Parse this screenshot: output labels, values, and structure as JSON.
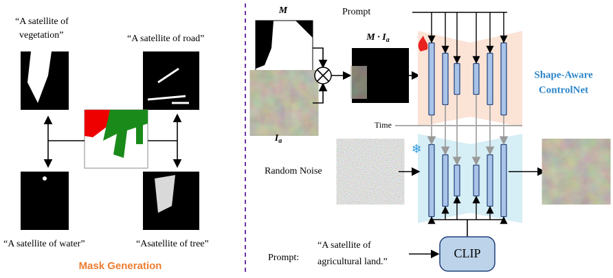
{
  "mask_generation": {
    "vegetation": [
      "“A satellite  of",
      "vegetation”"
    ],
    "road": "“A satellite of road”",
    "water": "“A satellite of water”",
    "tree": "“Asatellite of tree”",
    "title": "Mask Generation"
  },
  "pipeline": {
    "mask_label": "M",
    "masked_label": {
      "base": "M · I",
      "sub": "a"
    },
    "image_label": {
      "base": "I",
      "sub": "a"
    },
    "prompt_top": "Prompt",
    "time": "Time",
    "noise": "Random Noise",
    "network": [
      "Shape-Aware",
      "ControlNet"
    ],
    "prompt_label": "Prompt:",
    "prompt_text": [
      "“A satellite of",
      "agricultural land.”"
    ],
    "clip": "CLIP"
  }
}
